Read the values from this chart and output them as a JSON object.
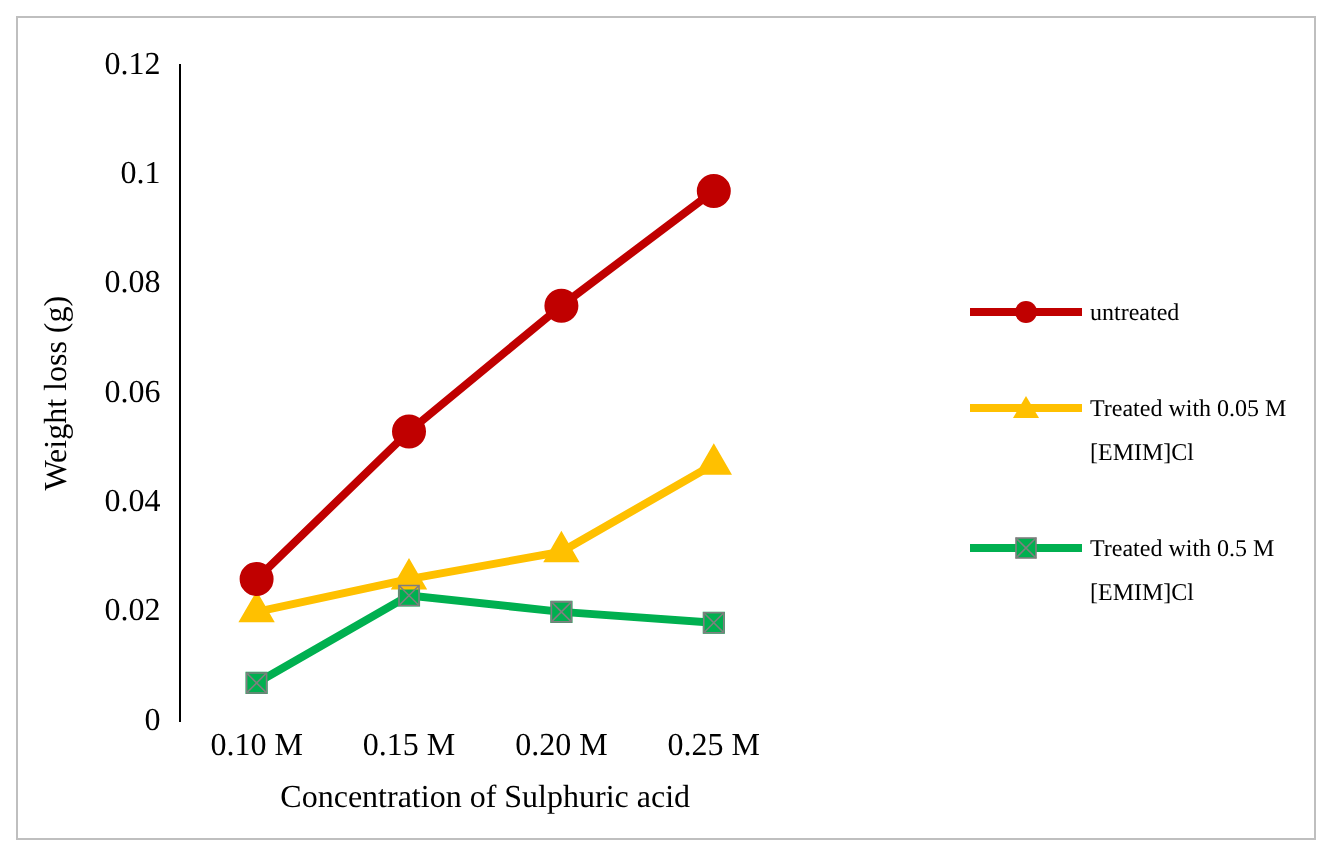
{
  "chart_data": {
    "type": "line",
    "xlabel": "Concentration of Sulphuric acid",
    "ylabel": "Weight loss (g)",
    "categories": [
      "0.10 M",
      "0.15 M",
      "0.20 M",
      "0.25 M"
    ],
    "series": [
      {
        "name": "untreated",
        "color": "#c00000",
        "marker": "circle",
        "values": [
          0.026,
          0.053,
          0.076,
          0.097
        ]
      },
      {
        "name": "Treated with 0.05 M [EMIM]Cl",
        "color": "#ffc000",
        "marker": "triangle",
        "values": [
          0.02,
          0.026,
          0.031,
          0.047
        ]
      },
      {
        "name": "Treated with 0.5 M [EMIM]Cl",
        "color": "#00b050",
        "marker": "square",
        "values": [
          0.007,
          0.023,
          0.02,
          0.018
        ]
      }
    ],
    "ylim": [
      0,
      0.12
    ],
    "yticks": [
      0,
      0.02,
      0.04,
      0.06,
      0.08,
      0.1,
      0.12
    ],
    "grid": false,
    "legend": "right",
    "line_style": "solid"
  }
}
